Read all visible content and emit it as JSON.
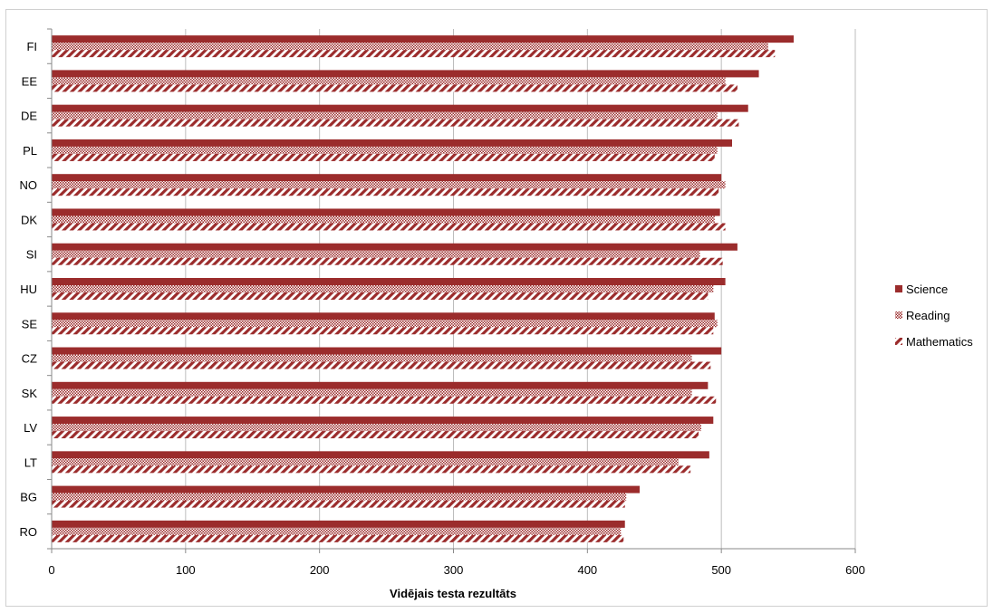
{
  "chart_data": {
    "type": "bar",
    "orientation": "horizontal",
    "categories": [
      "FI",
      "EE",
      "DE",
      "PL",
      "NO",
      "DK",
      "SI",
      "HU",
      "SE",
      "CZ",
      "SK",
      "LV",
      "LT",
      "BG",
      "RO"
    ],
    "series": [
      {
        "name": "Science",
        "color": "#9b2c2c",
        "pattern": "solid",
        "values": [
          554,
          528,
          520,
          508,
          500,
          499,
          512,
          503,
          495,
          500,
          490,
          494,
          491,
          439,
          428
        ]
      },
      {
        "name": "Reading",
        "color": "#9b2c2c",
        "pattern": "checker",
        "values": [
          535,
          503,
          497,
          497,
          503,
          495,
          484,
          494,
          497,
          478,
          478,
          485,
          468,
          429,
          425
        ]
      },
      {
        "name": "Mathematics",
        "color": "#9b2c2c",
        "pattern": "diagonal",
        "values": [
          540,
          512,
          513,
          495,
          498,
          503,
          501,
          490,
          494,
          492,
          496,
          483,
          477,
          428,
          427
        ]
      }
    ],
    "xlabel": "Vidējais testa rezultāts",
    "ylabel": "",
    "xlim": [
      0,
      600
    ],
    "xticks": [
      0,
      100,
      200,
      300,
      400,
      500,
      600
    ],
    "grid": "vertical",
    "legend_position": "right"
  }
}
